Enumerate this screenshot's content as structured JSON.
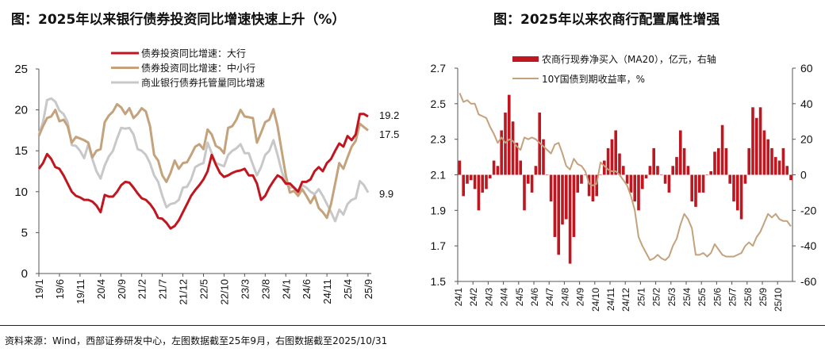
{
  "left_title": "图：2025年以来银行债券投资同比增速快速上升（%）",
  "right_title": "图：2025年以来农商行配置属性增强",
  "source": "资料来源：Wind，西部证券研发中心，左图数据截至25年9月，右图数据截至2025/10/31",
  "chart_data": [
    {
      "type": "line",
      "title": "图：2025年以来银行债券投资同比增速快速上升（%）",
      "ylim": [
        0,
        25
      ],
      "yticks": [
        0,
        5,
        10,
        15,
        20,
        25
      ],
      "x_start": "19/1",
      "x_end": "25/9",
      "x_frequency": "monthly",
      "xtick_labels": [
        "19/1",
        "19/6",
        "19/11",
        "20/4",
        "20/9",
        "21/2",
        "21/7",
        "21/12",
        "22/5",
        "22/10",
        "23/3",
        "23/8",
        "24/1",
        "24/6",
        "24/11",
        "25/4",
        "25/9"
      ],
      "grid": false,
      "legend": "top-center",
      "series": [
        {
          "name": "债券投资同比增速：大行",
          "color": "#c0161f",
          "end_label": "19.2",
          "values": [
            12.8,
            13.5,
            14.6,
            14.0,
            13.0,
            12.8,
            12.0,
            11.0,
            10.0,
            9.5,
            9.3,
            9.0,
            9.0,
            8.8,
            8.3,
            7.5,
            9.6,
            9.4,
            9.4,
            10.0,
            10.8,
            11.2,
            11.1,
            10.5,
            9.8,
            9.2,
            9.0,
            8.5,
            7.8,
            6.8,
            6.7,
            6.2,
            5.5,
            5.8,
            6.5,
            7.5,
            8.5,
            9.5,
            10.2,
            10.8,
            11.5,
            12.5,
            14.5,
            13.3,
            12.3,
            11.8,
            12.0,
            12.3,
            12.5,
            12.6,
            12.8,
            12.0,
            12.0,
            11.0,
            9.0,
            9.5,
            10.5,
            11.3,
            12.0,
            11.7,
            11.0,
            11.0,
            10.5,
            10.0,
            11.2,
            11.2,
            11.5,
            12.5,
            13.0,
            12.5,
            13.5,
            14.0,
            15.0,
            15.9,
            15.5,
            16.8,
            16.3,
            17.0,
            19.5,
            19.5,
            19.2
          ]
        },
        {
          "name": "债券投资同比增速：中小行",
          "color": "#c3a27c",
          "end_label": "17.5",
          "values": [
            16.8,
            18.0,
            19.0,
            19.2,
            20.0,
            18.6,
            18.8,
            18.0,
            16.0,
            16.7,
            16.5,
            16.3,
            16.0,
            14.2,
            15.0,
            15.2,
            18.5,
            19.3,
            19.8,
            20.7,
            20.3,
            19.5,
            20.2,
            19.0,
            19.5,
            20.2,
            19.8,
            18.0,
            14.5,
            13.8,
            12.0,
            11.2,
            12.3,
            13.8,
            12.8,
            13.5,
            13.6,
            14.5,
            15.5,
            15.8,
            15.2,
            17.6,
            17.0,
            15.6,
            15.3,
            14.7,
            17.8,
            18.0,
            18.8,
            20.0,
            19.2,
            19.1,
            19.0,
            16.0,
            17.2,
            18.5,
            18.8,
            20.1,
            18.0,
            15.0,
            12.0,
            9.9,
            10.1,
            9.5,
            10.3,
            9.5,
            8.6,
            9.5,
            8.0,
            7.5,
            6.8,
            8.5,
            11.0,
            13.5,
            12.8,
            14.2,
            15.5,
            16.2,
            18.3,
            17.9,
            17.5
          ]
        },
        {
          "name": "商业银行债券托管量同比增速",
          "color": "#c8c8c8",
          "end_label": "9.9",
          "values": [
            17.0,
            18.5,
            21.2,
            21.4,
            21.0,
            19.9,
            19.5,
            18.5,
            15.7,
            15.6,
            15.0,
            14.1,
            15.8,
            14.0,
            12.5,
            11.6,
            13.2,
            14.3,
            15.0,
            16.5,
            17.8,
            17.7,
            17.8,
            17.0,
            15.2,
            15.0,
            14.5,
            13.5,
            12.0,
            11.2,
            9.5,
            8.1,
            8.5,
            8.6,
            9.0,
            10.5,
            10.6,
            11.5,
            13.0,
            13.3,
            13.5,
            16.0,
            14.7,
            13.5,
            13.3,
            13.1,
            14.5,
            15.0,
            15.3,
            15.8,
            14.7,
            14.7,
            13.3,
            12.0,
            13.0,
            14.5,
            15.0,
            16.3,
            14.5,
            12.5,
            11.0,
            10.5,
            10.5,
            9.5,
            10.8,
            10.5,
            10.0,
            9.7,
            10.3,
            9.5,
            8.5,
            7.5,
            6.4,
            7.8,
            7.2,
            8.5,
            9.0,
            9.2,
            11.3,
            10.8,
            9.9
          ]
        }
      ]
    },
    {
      "type": "bar+line",
      "title": "图：2025年以来农商行配置属性增强",
      "ylim_left": [
        1.5,
        2.7
      ],
      "yticks_left": [
        "1.5",
        "1.7",
        "1.9",
        "2.1",
        "2.3",
        "2.5",
        "2.7"
      ],
      "ylim_right": [
        -60,
        60
      ],
      "yticks_right": [
        "-60",
        "-40",
        "-20",
        "0",
        "20",
        "40",
        "60"
      ],
      "months": [
        "24/1",
        "24/2",
        "24/3",
        "24/4",
        "24/5",
        "24/6",
        "24/7",
        "24/8",
        "24/9",
        "24/10",
        "24/11",
        "24/12",
        "25/1",
        "25/2",
        "25/3",
        "25/4",
        "25/5",
        "25/6",
        "25/7",
        "25/8",
        "25/9",
        "25/10"
      ],
      "values_per_month": "weekly",
      "grid": false,
      "legend": "top-center",
      "series": [
        {
          "name": "农商行现券净买入（MA20），亿元，右轴",
          "kind": "bar",
          "axis": "right",
          "color": "#c0161f",
          "values": [
            [
              8,
              -12,
              -5,
              -3
            ],
            [
              -8,
              -20,
              -10,
              -8
            ],
            [
              -2,
              8,
              5,
              25
            ],
            [
              35,
              45,
              30,
              18
            ],
            [
              8,
              -20,
              -5,
              -10
            ],
            [
              5,
              35,
              20,
              0
            ],
            [
              -15,
              -35,
              -45,
              -28
            ],
            [
              -25,
              -50,
              -35,
              -10
            ],
            [
              -5,
              0,
              -12,
              -15
            ],
            [
              -12,
              0,
              8,
              15
            ],
            [
              20,
              25,
              12,
              5
            ],
            [
              -5,
              -10,
              -15,
              -20
            ],
            [
              -8,
              -2,
              5,
              15
            ],
            [
              5,
              0,
              -5,
              -10
            ],
            [
              5,
              10,
              25,
              15
            ],
            [
              5,
              -15,
              -18,
              -10
            ],
            [
              -10,
              0,
              2,
              13
            ],
            [
              15,
              28,
              15,
              -5
            ],
            [
              -15,
              -20,
              -25,
              -5
            ],
            [
              15,
              38,
              32,
              38
            ],
            [
              25,
              20,
              15,
              10
            ],
            [
              8,
              15,
              5,
              -3
            ]
          ]
        },
        {
          "name": "10Y国债到期收益率，%",
          "kind": "line",
          "axis": "left",
          "color": "#c3a27c",
          "values": [
            [
              2.56,
              2.51,
              2.52,
              2.5
            ],
            [
              2.5,
              2.44,
              2.43,
              2.42
            ],
            [
              2.37,
              2.33,
              2.28,
              2.31
            ],
            [
              2.28,
              2.3,
              2.29,
              2.26
            ],
            [
              2.24,
              2.31,
              2.3,
              2.31
            ],
            [
              2.3,
              2.28,
              2.26,
              2.24
            ],
            [
              2.22,
              2.27,
              2.28,
              2.22
            ],
            [
              2.15,
              2.13,
              2.19,
              2.16
            ],
            [
              2.15,
              2.12,
              2.05,
              2.04
            ],
            [
              2.05,
              2.17,
              2.15,
              2.13
            ],
            [
              2.12,
              2.12,
              2.1,
              2.07
            ],
            [
              2.04,
              1.98,
              1.9,
              1.75
            ],
            [
              1.7,
              1.66,
              1.62,
              1.63
            ],
            [
              1.65,
              1.63,
              1.62,
              1.64
            ],
            [
              1.7,
              1.74,
              1.82,
              1.88
            ],
            [
              1.85,
              1.8,
              1.65,
              1.65
            ],
            [
              1.66,
              1.64,
              1.66,
              1.71
            ],
            [
              1.68,
              1.65,
              1.64,
              1.64
            ],
            [
              1.64,
              1.65,
              1.66,
              1.7
            ],
            [
              1.72,
              1.7,
              1.75,
              1.78
            ],
            [
              1.83,
              1.88,
              1.86,
              1.88
            ],
            [
              1.85,
              1.84,
              1.84,
              1.81
            ]
          ]
        }
      ]
    }
  ]
}
